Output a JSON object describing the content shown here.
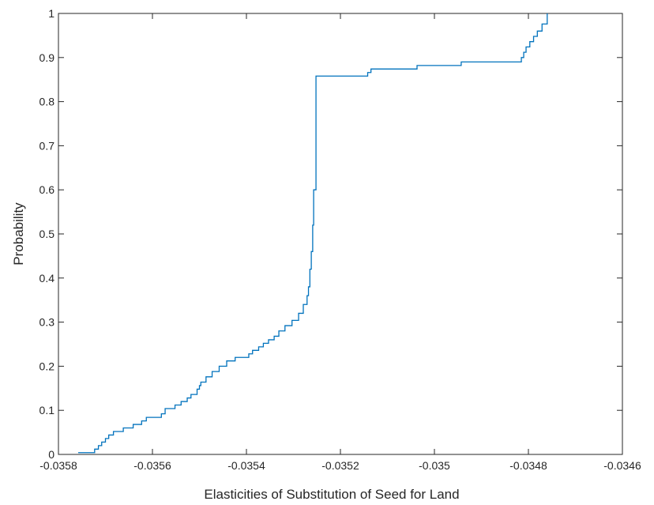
{
  "chart_data": {
    "type": "line",
    "title": "",
    "xlabel": "Elasticities of Substitution of Seed for Land",
    "ylabel": "Probability",
    "xlim": [
      -0.0358,
      -0.0346
    ],
    "ylim": [
      0,
      1
    ],
    "xticks": [
      -0.0358,
      -0.0356,
      -0.0354,
      -0.0352,
      -0.035,
      -0.0348,
      -0.0346
    ],
    "xtick_labels": [
      "-0.0358",
      "-0.0356",
      "-0.0354",
      "-0.0352",
      "-0.035",
      "-0.0348",
      "-0.0346"
    ],
    "yticks": [
      0,
      0.1,
      0.2,
      0.3,
      0.4,
      0.5,
      0.6,
      0.7,
      0.8,
      0.9,
      1
    ],
    "ytick_labels": [
      "0",
      "0.1",
      "0.2",
      "0.3",
      "0.4",
      "0.5",
      "0.6",
      "0.7",
      "0.8",
      "0.9",
      "1"
    ],
    "grid": false,
    "box": true,
    "series": [
      {
        "color": "#0072BD",
        "step": true,
        "x": [
          -0.035758,
          -0.035723,
          -0.035715,
          -0.035708,
          -0.0357,
          -0.035693,
          -0.035683,
          -0.035662,
          -0.035641,
          -0.035623,
          -0.035613,
          -0.035581,
          -0.035573,
          -0.035552,
          -0.035539,
          -0.035526,
          -0.035518,
          -0.035505,
          -0.0355,
          -0.035497,
          -0.035486,
          -0.035473,
          -0.035458,
          -0.035442,
          -0.035424,
          -0.035395,
          -0.035387,
          -0.035374,
          -0.035364,
          -0.035353,
          -0.035341,
          -0.035331,
          -0.035318,
          -0.035303,
          -0.035289,
          -0.035279,
          -0.035271,
          -0.035268,
          -0.035265,
          -0.035262,
          -0.035259,
          -0.035257,
          -0.035252,
          -0.035142,
          -0.035135,
          -0.035037,
          -0.034943,
          -0.034815,
          -0.03481,
          -0.034805,
          -0.034797,
          -0.034789,
          -0.034781,
          -0.034771,
          -0.03476
        ],
        "y": [
          0.004,
          0.012,
          0.02,
          0.028,
          0.036,
          0.044,
          0.052,
          0.06,
          0.068,
          0.076,
          0.084,
          0.092,
          0.104,
          0.112,
          0.12,
          0.128,
          0.136,
          0.148,
          0.156,
          0.164,
          0.176,
          0.188,
          0.2,
          0.212,
          0.22,
          0.228,
          0.236,
          0.244,
          0.252,
          0.26,
          0.268,
          0.28,
          0.292,
          0.304,
          0.32,
          0.34,
          0.36,
          0.38,
          0.42,
          0.46,
          0.52,
          0.6,
          0.858,
          0.866,
          0.874,
          0.882,
          0.89,
          0.9,
          0.912,
          0.924,
          0.936,
          0.948,
          0.96,
          0.976,
          1.0
        ]
      }
    ]
  }
}
